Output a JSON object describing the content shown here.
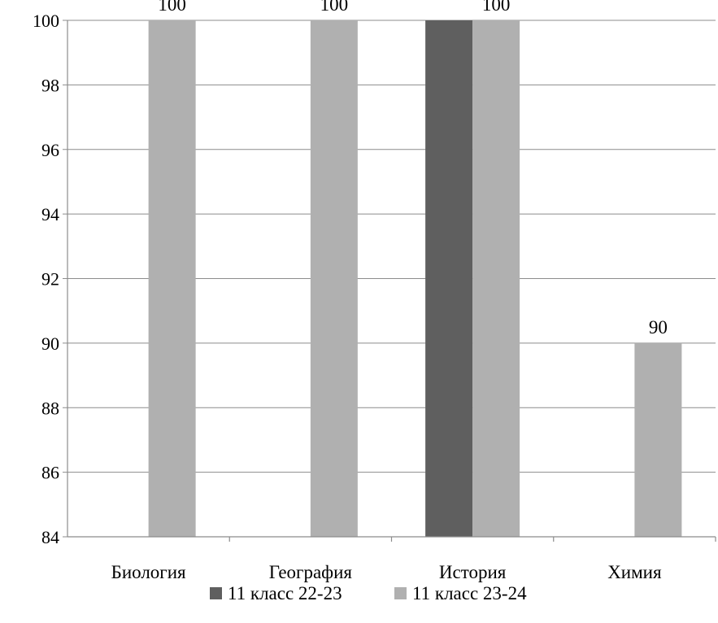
{
  "chart_data": {
    "type": "bar",
    "categories": [
      "Биология",
      "География",
      "История",
      "Химия"
    ],
    "series": [
      {
        "name": "11 класс 22-23",
        "color": "#5f5f5f",
        "values": [
          null,
          null,
          100,
          null
        ]
      },
      {
        "name": "11 класс 23-24",
        "color": "#b0b0b0",
        "values": [
          100,
          100,
          100,
          90
        ]
      }
    ],
    "data_labels": [
      "100",
      "100",
      "100",
      "90"
    ],
    "ylim": [
      84,
      100
    ],
    "yticks": [
      84,
      86,
      88,
      90,
      92,
      94,
      96,
      98,
      100
    ],
    "grid": true,
    "legend_position": "bottom"
  }
}
